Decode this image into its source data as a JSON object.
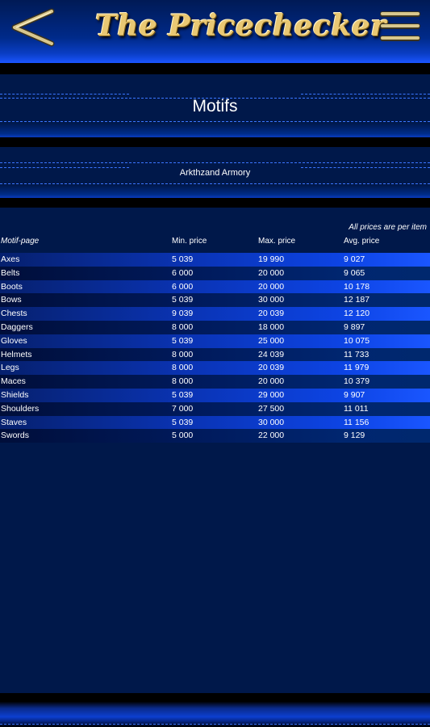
{
  "header": {
    "logo_text": "The Pricechecker",
    "back_icon": "chevron-left-icon",
    "menu_icon": "hamburger-menu-icon"
  },
  "page": {
    "title": "Motifs",
    "subtitle": "Arkthzand Armory",
    "note": "All prices are per item"
  },
  "table": {
    "headers": [
      "Motif-page",
      "Min. price",
      "Max. price",
      "Avg. price"
    ],
    "rows": [
      [
        "Axes",
        "5 039",
        "19 990",
        "9 027"
      ],
      [
        "Belts",
        "6 000",
        "20 000",
        "9 065"
      ],
      [
        "Boots",
        "6 000",
        "20 000",
        "10 178"
      ],
      [
        "Bows",
        "5 039",
        "30 000",
        "12 187"
      ],
      [
        "Chests",
        "9 039",
        "20 039",
        "12 120"
      ],
      [
        "Daggers",
        "8 000",
        "18 000",
        "9 897"
      ],
      [
        "Gloves",
        "5 039",
        "25 000",
        "10 075"
      ],
      [
        "Helmets",
        "8 000",
        "24 039",
        "11 733"
      ],
      [
        "Legs",
        "8 000",
        "20 039",
        "11 979"
      ],
      [
        "Maces",
        "8 000",
        "20 000",
        "10 379"
      ],
      [
        "Shields",
        "5 039",
        "29 000",
        "9 907"
      ],
      [
        "Shoulders",
        "7 000",
        "27 500",
        "11 011"
      ],
      [
        "Staves",
        "5 039",
        "30 000",
        "11 156"
      ],
      [
        "Swords",
        "5 000",
        "22 000",
        "9 129"
      ]
    ]
  },
  "colors": {
    "background": "#00184a",
    "accent": "#1b55ff",
    "logo_gold": "#e9c873"
  }
}
